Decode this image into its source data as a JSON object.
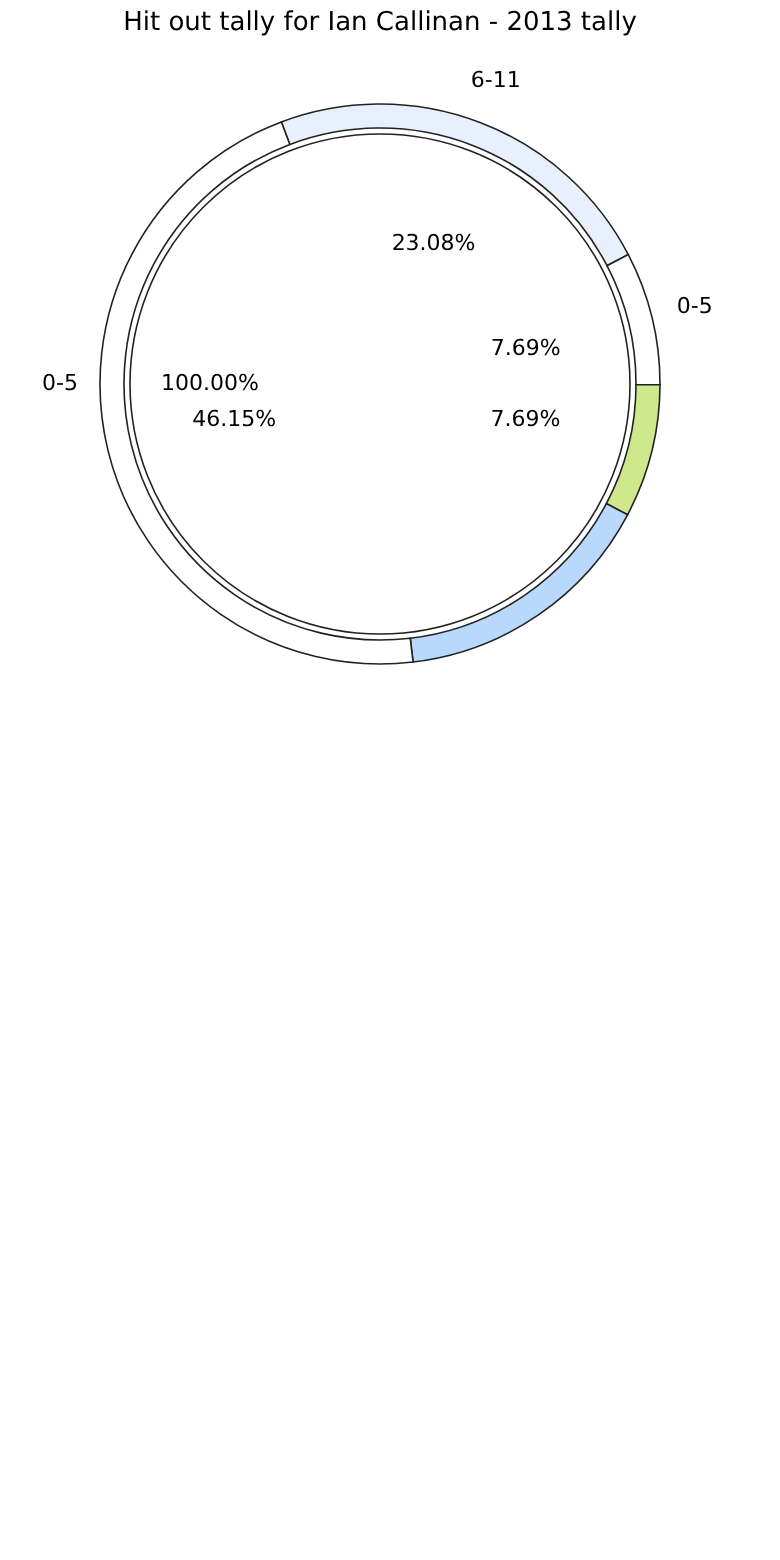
{
  "chart_data": [
    {
      "type": "donut",
      "title": "Hit out tally for Ian Callinan - 2013 tally",
      "categories": [
        "6-11",
        "0-5",
        null,
        null,
        null
      ],
      "values": [
        23.08,
        7.69,
        7.69,
        15.38,
        46.15
      ],
      "colors": [
        "#e8f0fe",
        "#ffffff",
        "#cfe88c",
        "#b8d8fc",
        "#ffffff"
      ],
      "value_labels": [
        "23.08%",
        "7.69%",
        "7.69%",
        null,
        "46.15%"
      ]
    },
    {
      "type": "pie",
      "categories": [
        "0-5"
      ],
      "values": [
        100
      ],
      "colors": [
        "#ffffff"
      ],
      "value_labels": [
        "100.00%"
      ]
    }
  ]
}
